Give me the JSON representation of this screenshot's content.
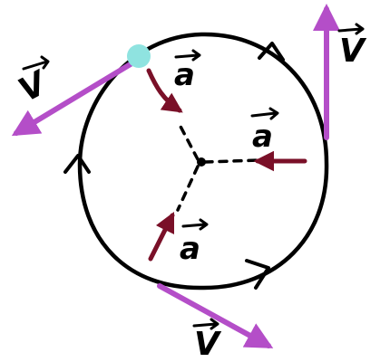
{
  "diagram": {
    "labels": {
      "v_top_left": "V",
      "v_right": "V",
      "v_bottom": "V",
      "a_top": "a",
      "a_right": "a",
      "a_bottom": "a"
    },
    "colors": {
      "background": "#ffffff",
      "circle": "#000000",
      "velocity": "#b44ec8",
      "acceleration": "#7a1028",
      "object": "#8fe3e0",
      "text": "#000000"
    }
  }
}
